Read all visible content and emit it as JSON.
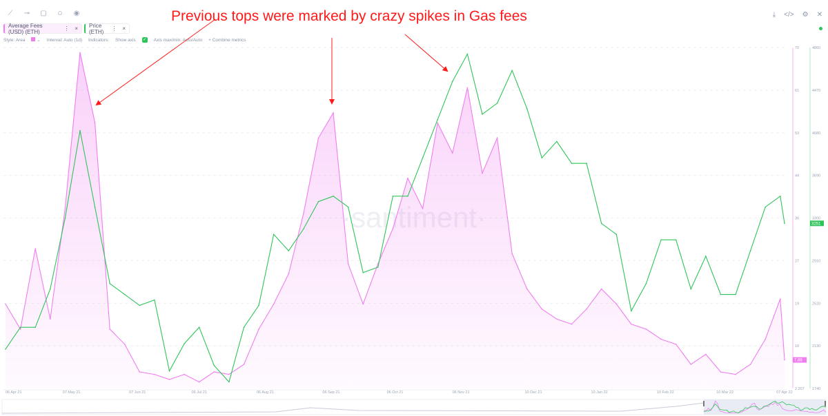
{
  "toolbar": {
    "icons": [
      "line-draw-icon",
      "ray-icon",
      "note-icon",
      "emoji-icon",
      "eye-icon"
    ]
  },
  "metrics": [
    {
      "label": "Average Fees (USD) (ETH)",
      "color": "#f07df0"
    },
    {
      "label": "Price (ETH)",
      "color": "#2fc45a"
    }
  ],
  "options": {
    "style": "Style: Area",
    "interval": "Interval: Auto (1d)",
    "indicators": "Indicators:",
    "show_axis": "Show axis",
    "axis_maxmin": "Axis max/min: Auto/Auto",
    "combine": "+  Combine metrics"
  },
  "annotation": "Previous tops were marked by crazy spikes in Gas fees",
  "watermark": "·santiment·",
  "chart_data": {
    "type": "line",
    "title": "",
    "x_tick_labels": [
      "06 Apr 21",
      "07 May 21",
      "07 Jun 21",
      "06 Jul 21",
      "06 Aug 21",
      "06 Sep 21",
      "06 Oct 21",
      "06 Nov 21",
      "10 Dec 21",
      "10 Jan 22",
      "10 Feb 22",
      "10 Mar 22",
      "07 Apr 22"
    ],
    "x": [
      "2021-04-06",
      "2021-04-13",
      "2021-04-20",
      "2021-04-27",
      "2021-05-04",
      "2021-05-11",
      "2021-05-18",
      "2021-05-25",
      "2021-06-01",
      "2021-06-08",
      "2021-06-15",
      "2021-06-22",
      "2021-06-29",
      "2021-07-06",
      "2021-07-13",
      "2021-07-20",
      "2021-07-27",
      "2021-08-03",
      "2021-08-10",
      "2021-08-17",
      "2021-08-24",
      "2021-08-31",
      "2021-09-07",
      "2021-09-14",
      "2021-09-21",
      "2021-09-28",
      "2021-10-05",
      "2021-10-12",
      "2021-10-19",
      "2021-10-26",
      "2021-11-02",
      "2021-11-09",
      "2021-11-16",
      "2021-11-23",
      "2021-11-30",
      "2021-12-07",
      "2021-12-14",
      "2021-12-21",
      "2021-12-28",
      "2022-01-04",
      "2022-01-11",
      "2022-01-18",
      "2022-01-25",
      "2022-02-01",
      "2022-02-08",
      "2022-02-15",
      "2022-02-22",
      "2022-03-01",
      "2022-03-08",
      "2022-03-15",
      "2022-03-22",
      "2022-03-29",
      "2022-04-05",
      "2022-04-07"
    ],
    "series": [
      {
        "name": "Average Fees (USD) (ETH)",
        "type": "area",
        "axis": "left",
        "color": "#f07df0",
        "ylim": [
          2.207,
          70
        ],
        "y_ticks": [
          "70",
          "61",
          "53",
          "44",
          "36",
          "27",
          "19",
          "10",
          "2.207"
        ],
        "last_value": "7.88",
        "values": [
          19,
          14,
          30,
          16,
          38,
          69,
          55,
          14,
          11,
          5.5,
          5,
          4,
          5,
          3.5,
          5.5,
          5,
          7,
          14,
          19,
          25,
          37,
          52,
          57,
          27,
          19,
          27,
          34,
          44,
          38,
          55,
          49,
          62,
          45,
          52,
          29,
          22,
          18,
          16,
          15,
          18,
          22,
          19,
          15,
          14,
          12,
          11,
          7,
          9,
          5.5,
          5,
          7,
          12,
          20,
          7.88
        ]
      },
      {
        "name": "Price (ETH)",
        "type": "line",
        "axis": "right",
        "color": "#2fc45a",
        "ylim": [
          1740,
          4860
        ],
        "y_ticks": [
          "4860",
          "4470",
          "4080",
          "3690",
          "3300",
          "2910",
          "2520",
          "2130",
          "1740"
        ],
        "last_value": "3251",
        "values": [
          2100,
          2300,
          2300,
          2650,
          3300,
          4100,
          3400,
          2700,
          2600,
          2500,
          2550,
          1900,
          2150,
          2300,
          1950,
          1800,
          2300,
          2500,
          3150,
          3000,
          3200,
          3450,
          3500,
          3400,
          2800,
          2850,
          3500,
          3500,
          3850,
          4200,
          4550,
          4800,
          4250,
          4350,
          4650,
          4300,
          3850,
          4000,
          3800,
          3800,
          3250,
          3150,
          2450,
          2700,
          3100,
          3100,
          2650,
          2950,
          2600,
          2600,
          3000,
          3400,
          3500,
          3251
        ]
      }
    ],
    "grid": true,
    "legend": "top-left"
  },
  "header_icons": [
    "download-icon",
    "embed-code-icon",
    "settings-icon",
    "close-icon"
  ]
}
